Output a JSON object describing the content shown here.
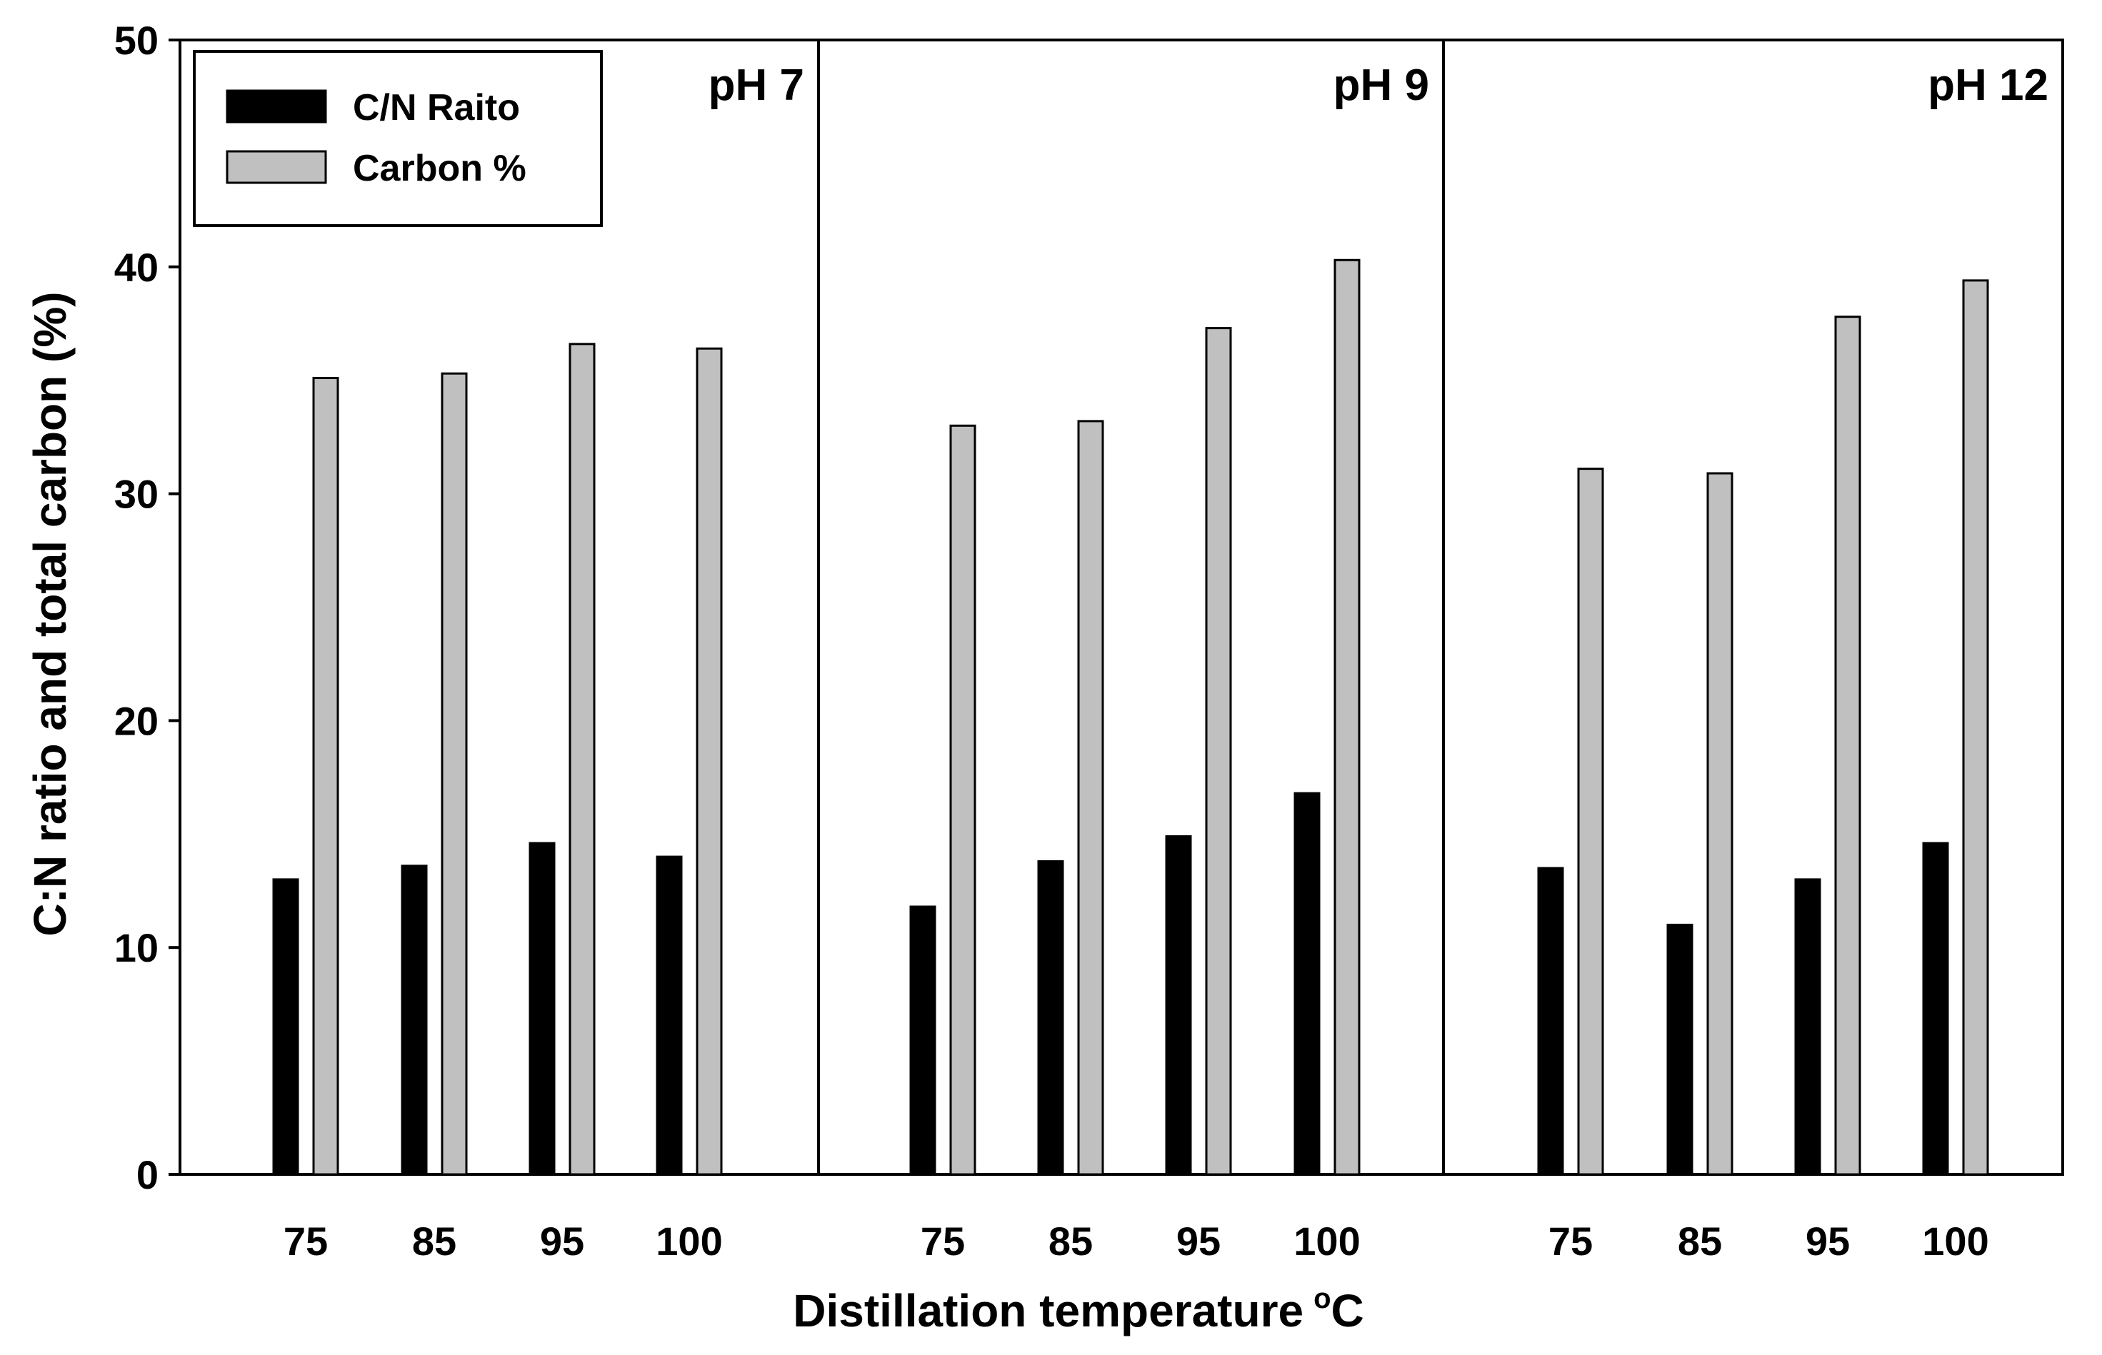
{
  "chart_data": {
    "type": "bar",
    "xlabel": "Distillation temperature",
    "xlabel_unit_prefix": "o",
    "xlabel_unit": "C",
    "ylabel": "C:N ratio and total carbon (%)",
    "ylim": [
      0,
      50
    ],
    "yticks": [
      "0",
      "10",
      "20",
      "30",
      "40",
      "50"
    ],
    "legend": {
      "position": "top-left",
      "entries": [
        {
          "name": "C/N Raito",
          "color": "#000000"
        },
        {
          "name": "Carbon %",
          "color": "#c0c0c0"
        }
      ]
    },
    "panels": [
      {
        "label": "pH 7",
        "categories": [
          "75",
          "85",
          "95",
          "100"
        ],
        "series": [
          {
            "name": "C/N Raito",
            "values": [
              13.0,
              13.6,
              14.6,
              14.0
            ]
          },
          {
            "name": "Carbon %",
            "values": [
              35.1,
              35.3,
              36.6,
              36.4
            ]
          }
        ]
      },
      {
        "label": "pH 9",
        "categories": [
          "75",
          "85",
          "95",
          "100"
        ],
        "series": [
          {
            "name": "C/N Raito",
            "values": [
              11.8,
              13.8,
              14.9,
              16.8
            ]
          },
          {
            "name": "Carbon %",
            "values": [
              33.0,
              33.2,
              37.3,
              40.3
            ]
          }
        ]
      },
      {
        "label": "pH 12",
        "categories": [
          "75",
          "85",
          "95",
          "100"
        ],
        "series": [
          {
            "name": "C/N Raito",
            "values": [
              13.5,
              11.0,
              13.0,
              14.6
            ]
          },
          {
            "name": "Carbon %",
            "values": [
              31.1,
              30.9,
              37.8,
              39.4
            ]
          }
        ]
      }
    ]
  }
}
